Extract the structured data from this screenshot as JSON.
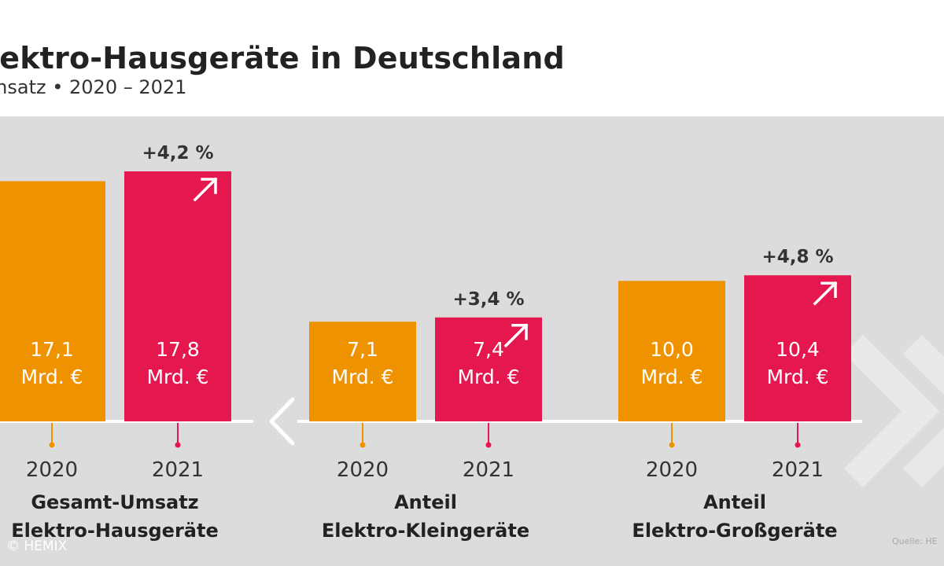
{
  "header": {
    "title": "lektro-Hausgeräte in Deutschland",
    "subtitle": "msatz • 2020 – 2021"
  },
  "colors": {
    "y2020": "#ef9200",
    "y2021": "#e4174f",
    "background": "#dcdcdc"
  },
  "chart_data": {
    "type": "bar",
    "title": "lektro-Hausgeräte in Deutschland",
    "subtitle": "msatz • 2020 – 2021",
    "unit": "Mrd. €",
    "years": [
      "2020",
      "2021"
    ],
    "groups": [
      {
        "label_lines": [
          "Gesamt-Umsatz",
          "Elektro-Hausgeräte"
        ],
        "values": [
          17.1,
          17.8
        ],
        "value_labels": [
          "17,1",
          "17,8"
        ],
        "change": "+4,2 %"
      },
      {
        "label_lines": [
          "Anteil",
          "Elektro-Kleingeräte"
        ],
        "values": [
          7.1,
          7.4
        ],
        "value_labels": [
          "7,1",
          "7,4"
        ],
        "change": "+3,4 %"
      },
      {
        "label_lines": [
          "Anteil",
          "Elektro-Großgeräte"
        ],
        "values": [
          10.0,
          10.4
        ],
        "value_labels": [
          "10,0",
          "10,4"
        ],
        "change": "+4,8 %"
      }
    ],
    "ylim": [
      0,
      17.8
    ]
  },
  "footer": {
    "copyright": "© HEMIX",
    "source": "Quelle: HE"
  }
}
